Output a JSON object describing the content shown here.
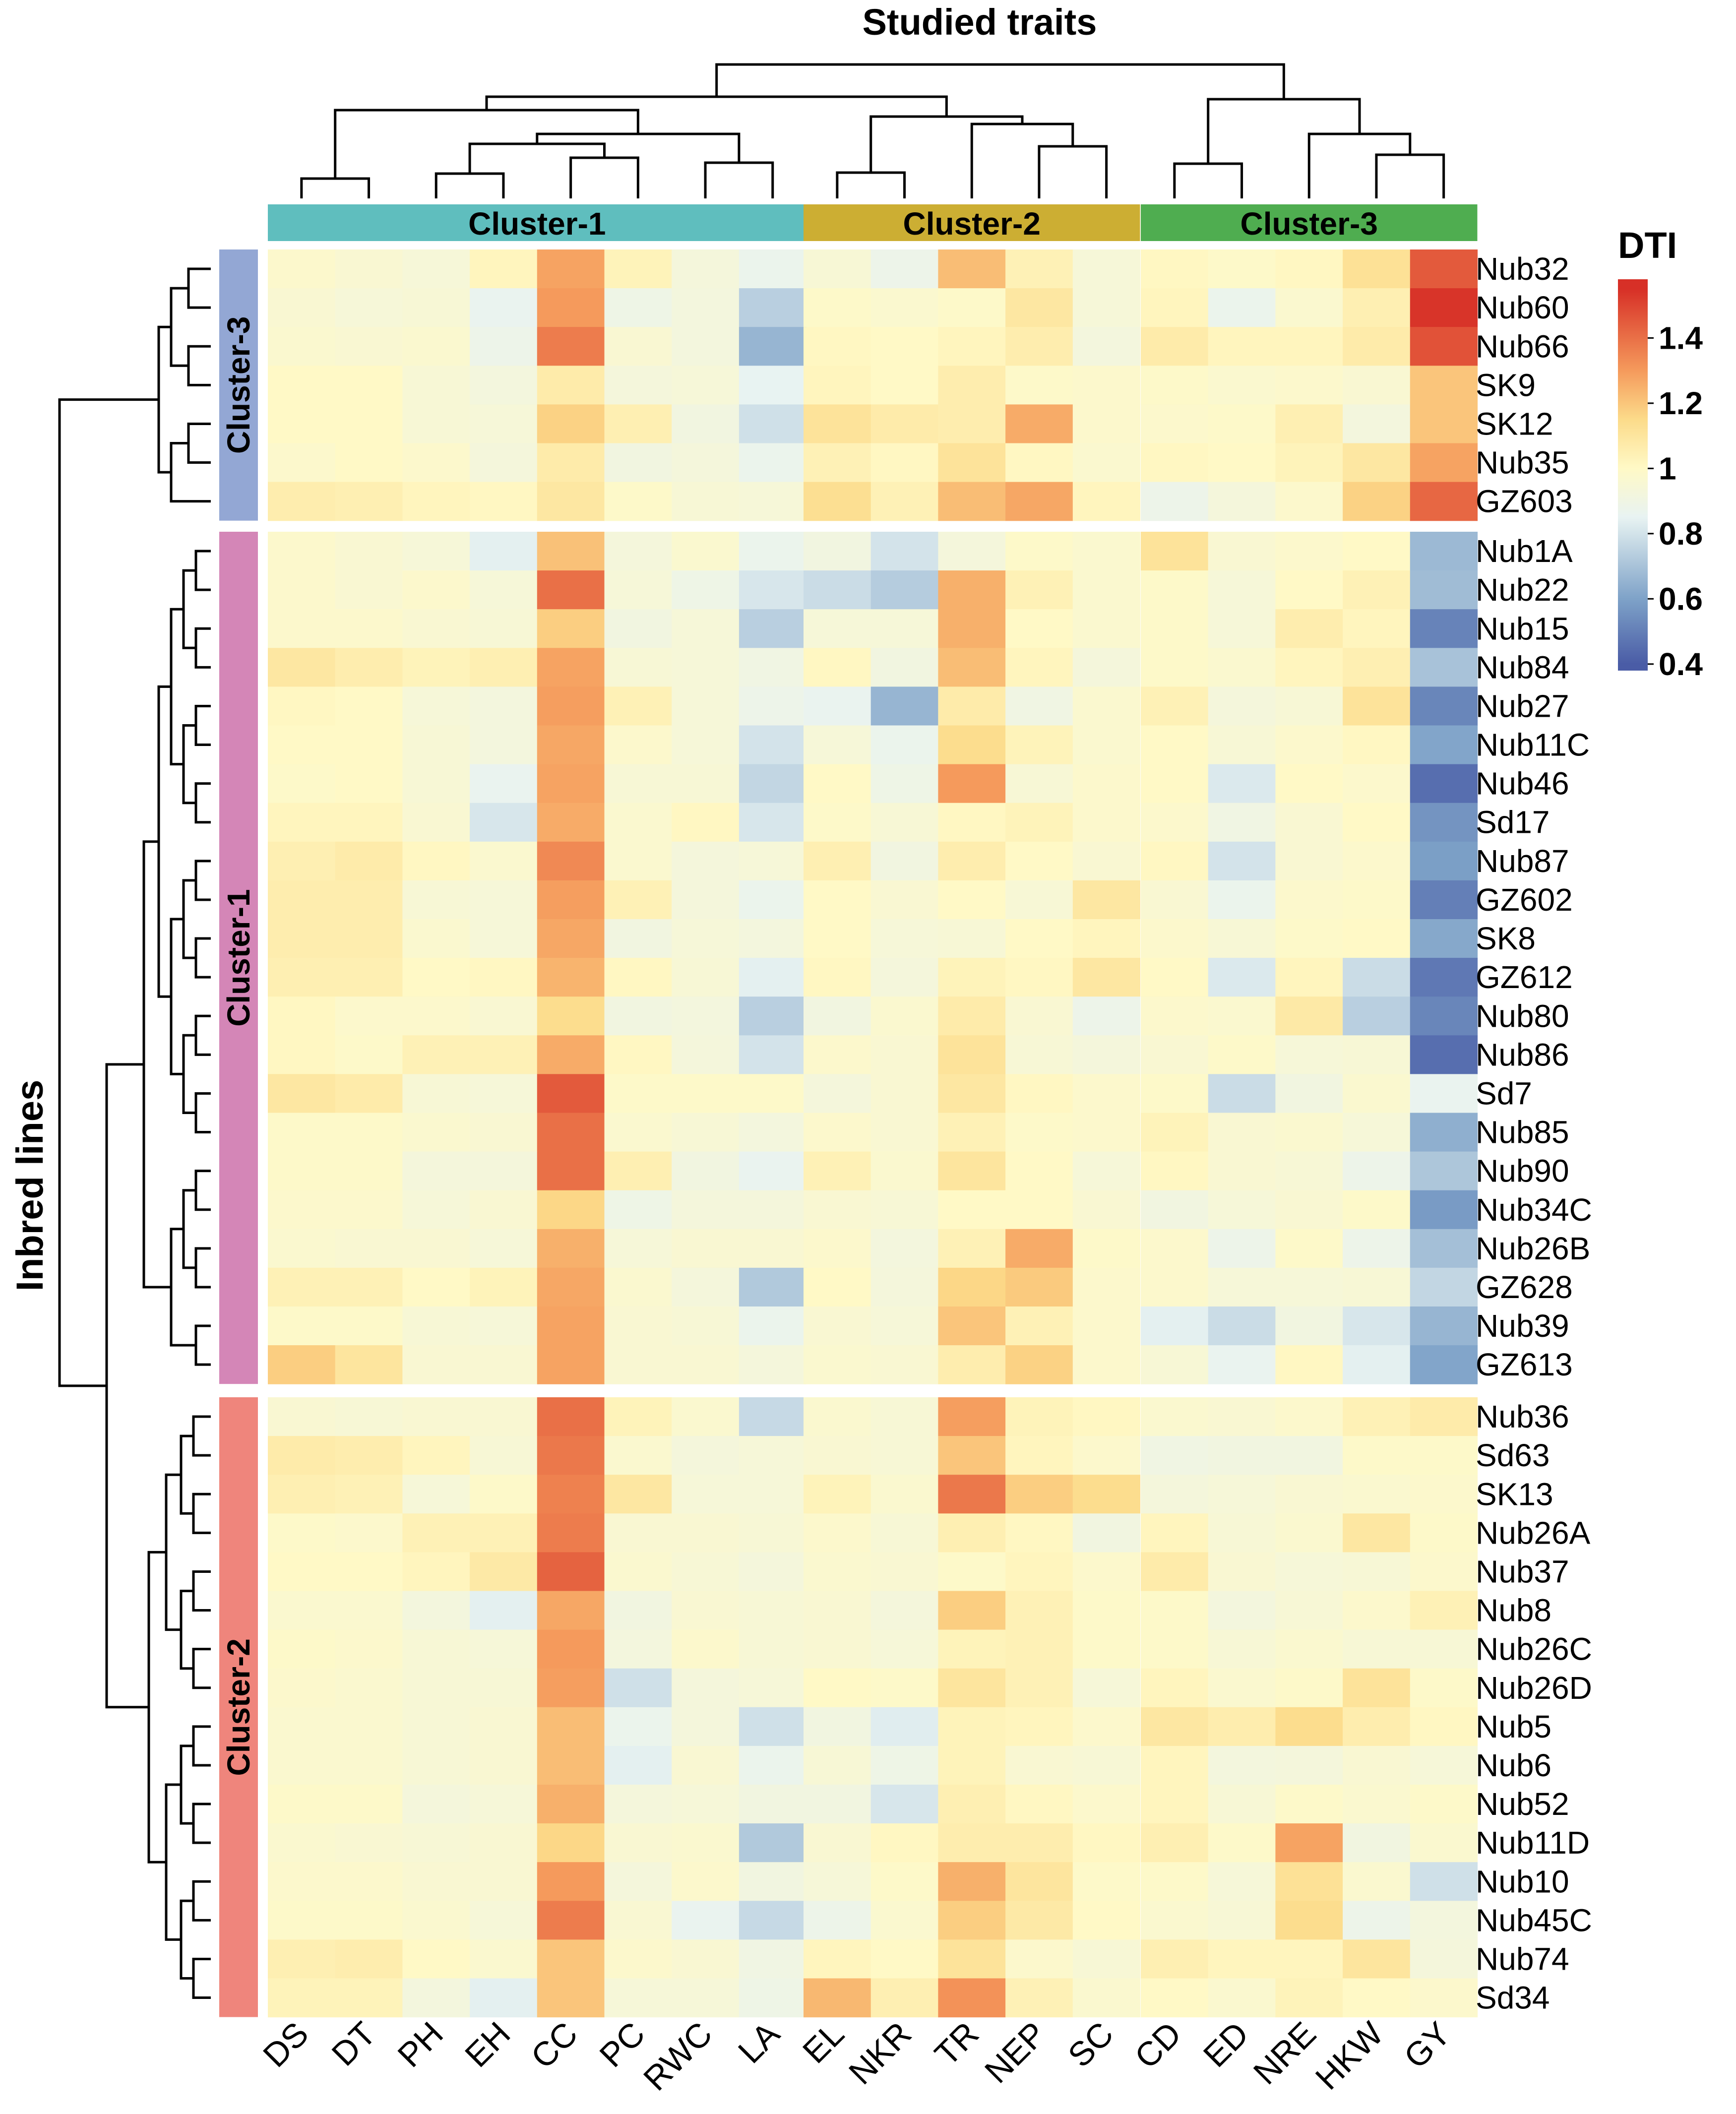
{
  "chart_data": {
    "type": "heatmap",
    "title": "Studied traits",
    "ylabel": "Inbred lines",
    "xlabel": "",
    "legend": {
      "title": "DTI",
      "ticks": [
        "1.4",
        "1.2",
        "1",
        "0.8",
        "0.6",
        "0.4"
      ],
      "range": [
        0.38,
        1.58
      ],
      "position": "top-right",
      "colors": [
        "#4a5ca6",
        "#7ea2c8",
        "#e8f3f2",
        "#fff9c6",
        "#fcdb8a",
        "#f59a5c",
        "#d73027"
      ]
    },
    "column_clusters": [
      {
        "label": "Cluster-1",
        "color": "#5fbebe",
        "columns": [
          "DS",
          "DT",
          "PH",
          "EH",
          "CC",
          "PC",
          "RWC",
          "LA"
        ]
      },
      {
        "label": "Cluster-2",
        "color": "#ccae33",
        "columns": [
          "EL",
          "NKR",
          "TR",
          "NEP",
          "SC"
        ]
      },
      {
        "label": "Cluster-3",
        "color": "#4fad50",
        "columns": [
          "CD",
          "ED",
          "NRE",
          "HKW",
          "GY"
        ]
      }
    ],
    "row_clusters": [
      {
        "label": "Cluster-3",
        "color": "#93a7d4",
        "rows": [
          "Nub32",
          "Nub60",
          "Nub66",
          "SK9",
          "SK12",
          "Nub35",
          "GZ603"
        ]
      },
      {
        "label": "Cluster-1",
        "color": "#d486b7",
        "rows": [
          "Nub1A",
          "Nub22",
          "Nub15",
          "Nub84",
          "Nub27",
          "Nub11C",
          "Nub46",
          "Sd17",
          "Nub87",
          "GZ602",
          "SK8",
          "GZ612",
          "Nub80",
          "Nub86",
          "Sd7",
          "Nub85",
          "Nub90",
          "Nub34C",
          "Nub26B",
          "GZ628",
          "Nub39",
          "GZ613"
        ]
      },
      {
        "label": "Cluster-2",
        "color": "#ef857c",
        "rows": [
          "Nub36",
          "Sd63",
          "SK13",
          "Nub26A",
          "Nub37",
          "Nub8",
          "Nub26C",
          "Nub26D",
          "Nub5",
          "Nub6",
          "Nub52",
          "Nub11D",
          "Nub10",
          "Nub45C",
          "Nub74",
          "Sd34"
        ]
      }
    ],
    "values": [
      [
        0.98,
        0.96,
        0.94,
        1.02,
        1.28,
        1.03,
        0.93,
        0.87,
        0.95,
        0.88,
        1.22,
        1.04,
        0.94,
        1.01,
        0.99,
        1.01,
        1.12,
        1.45
      ],
      [
        0.96,
        0.94,
        0.95,
        0.86,
        1.3,
        0.89,
        0.92,
        0.74,
        0.99,
        0.97,
        0.99,
        1.09,
        0.94,
        1.02,
        0.87,
        0.97,
        1.05,
        1.54
      ],
      [
        0.97,
        0.96,
        0.97,
        0.88,
        1.37,
        0.96,
        0.92,
        0.66,
        1.01,
        1.0,
        1.02,
        1.06,
        0.92,
        1.07,
        1.02,
        1.02,
        1.07,
        1.47
      ],
      [
        1.0,
        1.0,
        0.95,
        0.92,
        1.07,
        0.93,
        0.94,
        0.85,
        1.02,
        1.0,
        1.06,
        0.99,
        0.98,
        0.99,
        0.97,
        0.98,
        0.96,
        1.2
      ],
      [
        1.0,
        1.0,
        0.95,
        0.94,
        1.17,
        1.05,
        0.91,
        0.79,
        1.11,
        1.07,
        1.06,
        1.26,
        0.98,
        0.98,
        0.99,
        1.05,
        0.92,
        1.2
      ],
      [
        0.98,
        1.0,
        0.98,
        0.93,
        1.07,
        0.91,
        0.93,
        0.87,
        1.04,
        1.01,
        1.11,
        1.01,
        0.97,
        1.01,
        1.0,
        1.03,
        1.09,
        1.28
      ],
      [
        1.06,
        1.05,
        1.02,
        1.01,
        1.09,
        0.99,
        0.95,
        0.94,
        1.13,
        1.04,
        1.22,
        1.27,
        1.02,
        0.88,
        0.93,
        0.98,
        1.17,
        1.42
      ],
      [
        0.98,
        0.96,
        0.94,
        0.84,
        1.21,
        0.93,
        0.97,
        0.87,
        0.91,
        0.8,
        0.93,
        0.99,
        0.97,
        1.11,
        0.96,
        0.98,
        1.0,
        0.67
      ],
      [
        0.98,
        0.96,
        0.98,
        0.94,
        1.4,
        0.94,
        0.89,
        0.81,
        0.78,
        0.73,
        1.25,
        1.04,
        0.97,
        0.99,
        0.94,
        1.0,
        1.04,
        0.68
      ],
      [
        0.98,
        0.98,
        0.96,
        0.95,
        1.18,
        0.91,
        0.94,
        0.74,
        0.94,
        0.94,
        1.25,
        1.0,
        0.97,
        0.99,
        0.94,
        1.06,
        1.02,
        0.51
      ],
      [
        1.09,
        1.06,
        1.03,
        1.05,
        1.28,
        0.95,
        0.94,
        0.9,
        1.01,
        0.91,
        1.22,
        1.02,
        0.93,
        0.99,
        0.97,
        1.02,
        1.05,
        0.7
      ],
      [
        1.01,
        1.0,
        0.94,
        0.92,
        1.29,
        1.04,
        0.94,
        0.88,
        0.86,
        0.66,
        1.07,
        0.9,
        0.97,
        1.04,
        0.93,
        0.95,
        1.11,
        0.52
      ],
      [
        1.0,
        1.0,
        0.95,
        0.92,
        1.27,
        0.98,
        0.94,
        0.8,
        0.94,
        0.87,
        1.14,
        1.03,
        0.97,
        1.0,
        0.95,
        0.98,
        1.01,
        0.61
      ],
      [
        0.99,
        1.0,
        0.95,
        0.86,
        1.28,
        0.95,
        0.95,
        0.76,
        1.0,
        0.89,
        1.3,
        0.95,
        0.98,
        1.0,
        0.82,
        1.0,
        0.98,
        0.45
      ],
      [
        1.02,
        1.02,
        0.96,
        0.81,
        1.26,
        0.97,
        1.01,
        0.81,
        0.99,
        0.95,
        1.01,
        1.03,
        0.98,
        0.98,
        0.9,
        0.96,
        1.0,
        0.56
      ],
      [
        1.05,
        1.07,
        1.01,
        0.97,
        1.34,
        0.97,
        0.93,
        0.94,
        1.05,
        0.91,
        1.06,
        1.0,
        0.96,
        1.01,
        0.8,
        0.96,
        0.98,
        0.59
      ],
      [
        1.06,
        1.06,
        0.95,
        0.94,
        1.29,
        1.04,
        0.93,
        0.87,
        1.0,
        0.96,
        1.0,
        0.95,
        1.09,
        0.96,
        0.87,
        0.98,
        0.99,
        0.5
      ],
      [
        1.06,
        1.06,
        0.97,
        0.94,
        1.27,
        0.91,
        0.94,
        0.92,
        1.0,
        0.94,
        0.95,
        1.0,
        1.02,
        0.98,
        0.95,
        0.99,
        1.0,
        0.62
      ],
      [
        1.05,
        1.05,
        1.0,
        1.01,
        1.24,
        1.01,
        0.95,
        0.84,
        1.01,
        0.93,
        1.03,
        1.01,
        1.09,
        1.0,
        0.82,
        1.02,
        0.78,
        0.48
      ],
      [
        1.01,
        0.98,
        0.98,
        0.96,
        1.14,
        0.91,
        0.92,
        0.74,
        0.91,
        0.97,
        1.07,
        0.96,
        0.88,
        0.98,
        0.97,
        1.08,
        0.74,
        0.52
      ],
      [
        1.01,
        0.99,
        1.04,
        1.04,
        1.26,
        1.01,
        0.93,
        0.8,
        0.98,
        0.96,
        1.11,
        0.95,
        0.93,
        0.96,
        0.99,
        0.94,
        0.95,
        0.45
      ],
      [
        1.09,
        1.07,
        0.95,
        0.94,
        1.45,
        0.99,
        0.99,
        0.99,
        0.93,
        0.96,
        1.09,
        1.01,
        0.98,
        0.99,
        0.78,
        0.91,
        0.97,
        0.86
      ],
      [
        0.99,
        0.99,
        0.97,
        0.96,
        1.4,
        0.97,
        0.95,
        0.92,
        0.98,
        0.96,
        1.04,
        0.99,
        0.98,
        1.03,
        0.96,
        0.97,
        0.94,
        0.64
      ],
      [
        0.99,
        0.99,
        0.93,
        0.93,
        1.4,
        1.05,
        0.91,
        0.86,
        1.04,
        0.97,
        1.1,
        1.0,
        0.94,
        1.01,
        0.96,
        0.95,
        0.88,
        0.71
      ],
      [
        0.98,
        0.98,
        0.94,
        0.96,
        1.16,
        0.89,
        0.93,
        0.93,
        0.96,
        0.95,
        1.0,
        1.0,
        0.96,
        0.91,
        0.94,
        0.96,
        0.99,
        0.58
      ],
      [
        0.97,
        0.96,
        0.96,
        0.94,
        1.25,
        0.94,
        0.96,
        0.96,
        0.98,
        0.92,
        1.04,
        1.26,
        0.99,
        0.98,
        0.88,
        0.99,
        0.88,
        0.69
      ],
      [
        1.04,
        1.04,
        1.0,
        1.03,
        1.27,
        0.97,
        0.93,
        0.72,
        1.0,
        0.93,
        1.16,
        1.19,
        0.98,
        0.98,
        0.94,
        0.94,
        0.95,
        0.76
      ],
      [
        0.99,
        0.99,
        0.95,
        0.94,
        1.28,
        0.96,
        0.95,
        0.87,
        0.96,
        0.94,
        1.2,
        1.04,
        0.98,
        0.84,
        0.78,
        0.91,
        0.81,
        0.66
      ],
      [
        1.18,
        1.1,
        0.96,
        0.96,
        1.28,
        0.96,
        0.96,
        0.93,
        0.97,
        0.96,
        1.06,
        1.17,
        0.98,
        0.95,
        0.86,
        1.01,
        0.84,
        0.61
      ],
      [
        0.96,
        0.95,
        0.96,
        0.96,
        1.4,
        1.03,
        0.97,
        0.77,
        0.97,
        0.95,
        1.29,
        1.03,
        1.01,
        0.97,
        0.96,
        0.98,
        1.04,
        1.07
      ],
      [
        1.07,
        1.06,
        1.02,
        0.95,
        1.38,
        0.97,
        0.93,
        0.94,
        0.96,
        0.95,
        1.2,
        1.02,
        0.98,
        0.9,
        0.91,
        0.91,
        0.99,
        0.99
      ],
      [
        1.05,
        1.04,
        0.94,
        0.99,
        1.36,
        1.09,
        0.94,
        0.94,
        1.03,
        0.97,
        1.38,
        1.18,
        1.14,
        0.93,
        0.94,
        0.96,
        0.97,
        0.98
      ],
      [
        0.99,
        0.98,
        1.04,
        1.04,
        1.37,
        0.96,
        0.96,
        0.95,
        0.98,
        0.95,
        1.05,
        1.01,
        0.91,
        1.02,
        0.95,
        0.97,
        1.09,
        0.99
      ],
      [
        1.0,
        1.0,
        1.02,
        1.08,
        1.43,
        0.97,
        0.95,
        0.93,
        0.97,
        0.96,
        0.99,
        1.02,
        0.98,
        1.07,
        0.96,
        0.94,
        0.95,
        0.98
      ],
      [
        0.97,
        0.97,
        0.92,
        0.84,
        1.27,
        0.91,
        0.96,
        0.95,
        0.96,
        0.93,
        1.18,
        1.04,
        0.99,
        0.99,
        0.92,
        0.95,
        0.98,
        1.04
      ],
      [
        0.99,
        0.98,
        0.95,
        0.94,
        1.3,
        0.92,
        0.98,
        0.95,
        0.96,
        0.94,
        1.03,
        1.04,
        0.99,
        0.99,
        0.95,
        0.97,
        0.95,
        0.95
      ],
      [
        0.98,
        0.97,
        0.95,
        0.95,
        1.29,
        0.79,
        0.93,
        0.94,
        1.0,
        0.99,
        1.1,
        1.04,
        0.94,
        1.02,
        0.97,
        0.99,
        1.11,
        0.99
      ],
      [
        0.97,
        0.97,
        0.95,
        0.96,
        1.22,
        0.87,
        0.93,
        0.79,
        0.91,
        0.83,
        1.03,
        1.02,
        0.98,
        1.09,
        1.06,
        1.14,
        1.06,
        1.01
      ],
      [
        0.97,
        0.97,
        0.95,
        0.96,
        1.22,
        0.84,
        0.96,
        0.87,
        0.95,
        0.89,
        1.03,
        0.96,
        0.95,
        1.02,
        0.92,
        0.93,
        0.96,
        0.94
      ],
      [
        0.99,
        0.99,
        0.93,
        0.94,
        1.25,
        0.93,
        0.94,
        0.91,
        0.91,
        0.81,
        1.05,
        1.01,
        0.98,
        1.02,
        0.95,
        0.99,
        0.97,
        0.99
      ],
      [
        0.97,
        0.96,
        0.95,
        0.96,
        1.16,
        0.96,
        0.97,
        0.72,
        0.96,
        1.01,
        1.06,
        1.06,
        1.01,
        1.05,
        0.99,
        1.28,
        0.91,
        0.97
      ],
      [
        0.98,
        0.98,
        0.96,
        0.96,
        1.3,
        0.93,
        0.98,
        0.91,
        0.94,
        0.99,
        1.25,
        1.1,
        0.99,
        0.99,
        0.94,
        1.12,
        0.97,
        0.79
      ],
      [
        0.99,
        0.99,
        0.97,
        0.94,
        1.37,
        0.96,
        0.86,
        0.77,
        0.88,
        0.97,
        1.18,
        1.08,
        1.0,
        0.97,
        0.95,
        1.14,
        0.88,
        0.92
      ],
      [
        1.05,
        1.06,
        1.0,
        0.97,
        1.2,
        0.98,
        0.96,
        0.9,
        1.02,
        1.0,
        1.11,
        0.98,
        0.95,
        1.05,
        1.02,
        1.02,
        1.1,
        0.93
      ],
      [
        1.03,
        1.03,
        0.92,
        0.84,
        1.2,
        0.94,
        0.94,
        0.89,
        1.23,
        1.05,
        1.32,
        1.04,
        0.97,
        1.0,
        0.97,
        1.03,
        1.0,
        0.98
      ]
    ]
  },
  "labels": {
    "title": "Studied traits",
    "ylabel": "Inbred lines",
    "legend_title": "DTI"
  }
}
